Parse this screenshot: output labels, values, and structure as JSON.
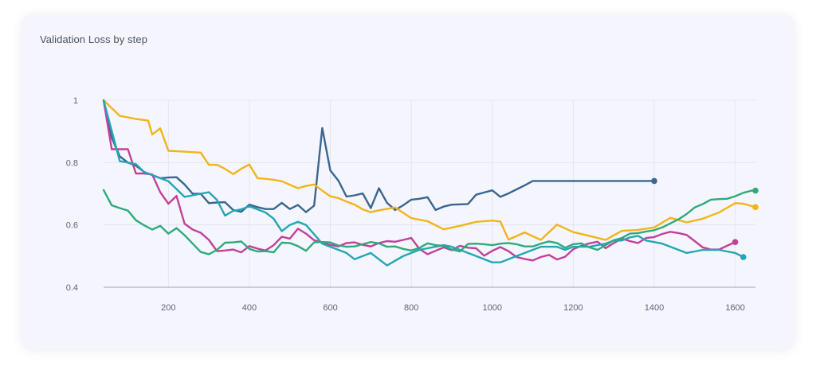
{
  "chart_data": {
    "type": "line",
    "title": "Validation Loss by step",
    "xlabel": "",
    "ylabel": "",
    "xlim": [
      40,
      1650
    ],
    "ylim": [
      0.4,
      1.0
    ],
    "xticks": [
      200,
      400,
      600,
      800,
      1000,
      1200,
      1400,
      1600
    ],
    "yticks": [
      0.4,
      0.6,
      0.8,
      1.0
    ],
    "ytick_labels": [
      "0.4",
      "0.6",
      "0.8",
      "1"
    ],
    "grid": true,
    "series": [
      {
        "name": "dark-blue",
        "color": "#3a6690",
        "x": [
          40,
          60,
          80,
          100,
          120,
          140,
          160,
          180,
          200,
          220,
          240,
          260,
          280,
          300,
          320,
          340,
          360,
          380,
          400,
          420,
          440,
          460,
          480,
          500,
          520,
          540,
          560,
          580,
          600,
          620,
          640,
          660,
          680,
          700,
          720,
          740,
          760,
          780,
          800,
          820,
          840,
          860,
          880,
          900,
          920,
          940,
          960,
          980,
          1000,
          1020,
          1040,
          1060,
          1080,
          1100,
          1120,
          1140,
          1160,
          1180,
          1200,
          1220,
          1240,
          1260,
          1280,
          1300,
          1320,
          1340,
          1360,
          1380,
          1400
        ],
        "y": [
          1.0,
          0.88,
          0.82,
          0.8,
          0.79,
          0.77,
          0.76,
          0.75,
          0.752,
          0.753,
          0.73,
          0.7,
          0.7,
          0.67,
          0.672,
          0.673,
          0.648,
          0.642,
          0.665,
          0.657,
          0.651,
          0.651,
          0.671,
          0.651,
          0.664,
          0.641,
          0.662,
          0.911,
          0.775,
          0.742,
          0.691,
          0.695,
          0.701,
          0.654,
          0.718,
          0.671,
          0.648,
          0.663,
          0.681,
          0.684,
          0.689,
          0.648,
          0.659,
          0.665,
          0.666,
          0.667,
          0.697,
          0.704,
          0.711,
          0.69,
          0.701,
          0.714,
          0.727,
          0.741,
          0.741,
          0.741,
          0.741,
          0.741,
          0.741,
          0.741,
          0.741,
          0.741,
          0.741,
          0.741,
          0.741,
          0.741,
          0.741,
          0.741,
          0.741
        ],
        "visible_x_max": 1400
      },
      {
        "name": "yellow",
        "color": "#f2b41c",
        "x": [
          40,
          80,
          120,
          150,
          160,
          180,
          200,
          240,
          280,
          300,
          320,
          340,
          360,
          380,
          400,
          420,
          440,
          460,
          480,
          520,
          540,
          560,
          580,
          600,
          620,
          640,
          660,
          680,
          700,
          720,
          760,
          800,
          840,
          880,
          920,
          960,
          1000,
          1020,
          1040,
          1080,
          1120,
          1160,
          1200,
          1240,
          1280,
          1320,
          1360,
          1400,
          1440,
          1480,
          1520,
          1560,
          1600,
          1620,
          1650
        ],
        "y": [
          1.0,
          0.95,
          0.94,
          0.935,
          0.89,
          0.91,
          0.838,
          0.835,
          0.832,
          0.793,
          0.793,
          0.78,
          0.763,
          0.78,
          0.794,
          0.75,
          0.748,
          0.745,
          0.74,
          0.718,
          0.725,
          0.73,
          0.71,
          0.692,
          0.686,
          0.675,
          0.665,
          0.65,
          0.641,
          0.647,
          0.656,
          0.622,
          0.612,
          0.586,
          0.597,
          0.61,
          0.614,
          0.611,
          0.553,
          0.576,
          0.552,
          0.601,
          0.577,
          0.565,
          0.552,
          0.581,
          0.584,
          0.592,
          0.623,
          0.608,
          0.62,
          0.64,
          0.67,
          0.668,
          0.657
        ],
        "visible_x_max": 1650
      },
      {
        "name": "magenta",
        "color": "#c2409a",
        "x": [
          40,
          60,
          80,
          100,
          120,
          140,
          160,
          180,
          200,
          220,
          240,
          260,
          280,
          300,
          320,
          340,
          360,
          380,
          400,
          420,
          440,
          460,
          480,
          500,
          520,
          540,
          560,
          580,
          600,
          620,
          640,
          660,
          680,
          700,
          720,
          740,
          760,
          780,
          800,
          820,
          840,
          860,
          880,
          900,
          920,
          940,
          960,
          980,
          1000,
          1020,
          1040,
          1060,
          1080,
          1100,
          1120,
          1140,
          1160,
          1180,
          1200,
          1220,
          1240,
          1260,
          1280,
          1300,
          1320,
          1340,
          1360,
          1380,
          1400,
          1420,
          1440,
          1460,
          1480,
          1500,
          1520,
          1540,
          1560,
          1580,
          1600
        ],
        "y": [
          1.0,
          0.843,
          0.843,
          0.843,
          0.765,
          0.765,
          0.762,
          0.705,
          0.668,
          0.693,
          0.604,
          0.585,
          0.575,
          0.552,
          0.516,
          0.518,
          0.521,
          0.512,
          0.532,
          0.524,
          0.518,
          0.535,
          0.562,
          0.556,
          0.588,
          0.572,
          0.551,
          0.543,
          0.536,
          0.531,
          0.542,
          0.544,
          0.536,
          0.531,
          0.542,
          0.548,
          0.546,
          0.552,
          0.558,
          0.523,
          0.506,
          0.517,
          0.528,
          0.519,
          0.533,
          0.527,
          0.525,
          0.501,
          0.517,
          0.529,
          0.516,
          0.497,
          0.491,
          0.486,
          0.497,
          0.504,
          0.489,
          0.498,
          0.522,
          0.533,
          0.541,
          0.546,
          0.525,
          0.542,
          0.556,
          0.548,
          0.542,
          0.558,
          0.561,
          0.571,
          0.578,
          0.574,
          0.568,
          0.548,
          0.528,
          0.521,
          0.521,
          0.533,
          0.545
        ],
        "visible_x_max": 1600
      },
      {
        "name": "teal",
        "color": "#23a6b5",
        "x": [
          40,
          80,
          100,
          120,
          140,
          160,
          180,
          200,
          240,
          260,
          280,
          300,
          320,
          340,
          360,
          380,
          400,
          420,
          440,
          460,
          480,
          500,
          520,
          540,
          560,
          580,
          600,
          620,
          640,
          660,
          680,
          700,
          720,
          740,
          760,
          780,
          800,
          820,
          840,
          860,
          880,
          900,
          920,
          940,
          960,
          980,
          1000,
          1020,
          1040,
          1060,
          1080,
          1100,
          1120,
          1140,
          1160,
          1180,
          1200,
          1220,
          1240,
          1260,
          1280,
          1300,
          1320,
          1340,
          1360,
          1380,
          1400,
          1420,
          1440,
          1460,
          1480,
          1500,
          1520,
          1540,
          1560,
          1580,
          1600,
          1620
        ],
        "y": [
          1.0,
          0.805,
          0.8,
          0.795,
          0.77,
          0.76,
          0.75,
          0.74,
          0.69,
          0.695,
          0.7,
          0.705,
          0.68,
          0.63,
          0.645,
          0.65,
          0.66,
          0.65,
          0.64,
          0.62,
          0.58,
          0.6,
          0.61,
          0.6,
          0.57,
          0.54,
          0.53,
          0.52,
          0.51,
          0.49,
          0.5,
          0.51,
          0.49,
          0.47,
          0.485,
          0.5,
          0.51,
          0.52,
          0.525,
          0.53,
          0.535,
          0.53,
          0.52,
          0.51,
          0.5,
          0.49,
          0.48,
          0.48,
          0.49,
          0.5,
          0.51,
          0.52,
          0.53,
          0.53,
          0.53,
          0.52,
          0.53,
          0.53,
          0.53,
          0.535,
          0.54,
          0.55,
          0.55,
          0.56,
          0.565,
          0.55,
          0.545,
          0.54,
          0.53,
          0.52,
          0.51,
          0.515,
          0.52,
          0.52,
          0.52,
          0.515,
          0.51,
          0.497
        ],
        "visible_x_max": 1620
      },
      {
        "name": "green",
        "color": "#2eaa7a",
        "x": [
          40,
          60,
          80,
          100,
          120,
          140,
          160,
          180,
          200,
          220,
          240,
          260,
          280,
          300,
          320,
          340,
          360,
          380,
          400,
          420,
          440,
          460,
          480,
          500,
          520,
          540,
          560,
          580,
          600,
          620,
          640,
          660,
          680,
          700,
          720,
          740,
          760,
          780,
          800,
          820,
          840,
          860,
          880,
          900,
          920,
          940,
          960,
          980,
          1000,
          1020,
          1040,
          1060,
          1080,
          1100,
          1120,
          1140,
          1160,
          1180,
          1200,
          1220,
          1240,
          1260,
          1280,
          1300,
          1320,
          1340,
          1360,
          1380,
          1400,
          1420,
          1440,
          1460,
          1480,
          1500,
          1520,
          1540,
          1560,
          1580,
          1600,
          1620,
          1640,
          1650
        ],
        "y": [
          0.712,
          0.663,
          0.654,
          0.646,
          0.615,
          0.599,
          0.585,
          0.597,
          0.572,
          0.59,
          0.567,
          0.54,
          0.513,
          0.506,
          0.52,
          0.543,
          0.544,
          0.547,
          0.523,
          0.515,
          0.516,
          0.512,
          0.543,
          0.542,
          0.532,
          0.517,
          0.544,
          0.545,
          0.544,
          0.534,
          0.53,
          0.531,
          0.538,
          0.545,
          0.541,
          0.53,
          0.531,
          0.523,
          0.518,
          0.526,
          0.541,
          0.535,
          0.533,
          0.521,
          0.515,
          0.539,
          0.54,
          0.538,
          0.535,
          0.54,
          0.542,
          0.538,
          0.531,
          0.531,
          0.54,
          0.547,
          0.542,
          0.527,
          0.538,
          0.541,
          0.528,
          0.52,
          0.535,
          0.551,
          0.558,
          0.572,
          0.574,
          0.579,
          0.583,
          0.592,
          0.605,
          0.618,
          0.635,
          0.656,
          0.667,
          0.681,
          0.683,
          0.684,
          0.692,
          0.703,
          0.71,
          0.71
        ],
        "visible_x_max": 1650
      }
    ]
  }
}
